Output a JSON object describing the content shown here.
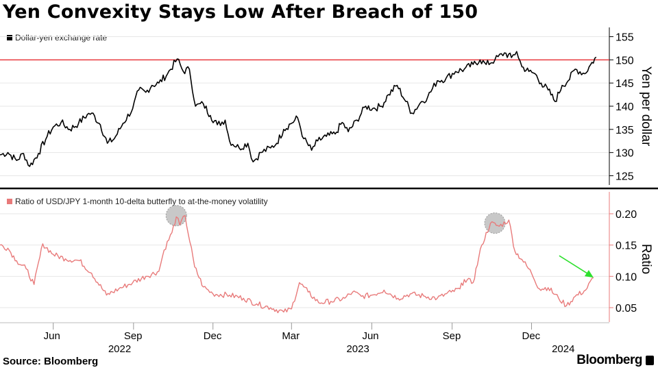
{
  "title": "Yen Convexity Stays Low After Breach of 150",
  "source": "Source: Bloomberg",
  "brand": "Bloomberg",
  "colors": {
    "upper_line": "#000000",
    "lower_line": "#e87a7a",
    "reference_line": "#e8383d",
    "arrow": "#2ee02e",
    "highlight": "#bdbdbd",
    "axis_lower": "#e87a7a"
  },
  "x_axis": {
    "month_ticks": [
      {
        "label": "Jun",
        "date": "2022-06-01"
      },
      {
        "label": "Sep",
        "date": "2022-09-01"
      },
      {
        "label": "Dec",
        "date": "2022-12-01"
      },
      {
        "label": "Mar",
        "date": "2023-03-01"
      },
      {
        "label": "Jun",
        "date": "2023-06-01"
      },
      {
        "label": "Sep",
        "date": "2023-09-01"
      },
      {
        "label": "Dec",
        "date": "2023-12-01"
      }
    ],
    "year_labels": [
      {
        "label": "2022",
        "date": "2022-09-01"
      },
      {
        "label": "2023",
        "date": "2023-06-01"
      },
      {
        "label": "2024",
        "date": "2024-01-05"
      }
    ]
  },
  "chart_data": [
    {
      "type": "line",
      "legend": "Dollar-yen exchange rate",
      "ylabel": "Yen per dollar",
      "ylim": [
        123,
        157
      ],
      "yticks": [
        125,
        130,
        135,
        140,
        145,
        150,
        155
      ],
      "reference_line": 150,
      "series": [
        {
          "name": "Dollar-yen exchange rate",
          "points": [
            [
              "2022-04-01",
              129.5
            ],
            [
              "2022-04-10",
              130.0
            ],
            [
              "2022-04-20",
              128.3
            ],
            [
              "2022-04-28",
              129.8
            ],
            [
              "2022-05-05",
              127.0
            ],
            [
              "2022-05-15",
              129.8
            ],
            [
              "2022-05-25",
              133.5
            ],
            [
              "2022-06-01",
              135.5
            ],
            [
              "2022-06-10",
              136.5
            ],
            [
              "2022-06-20",
              135.0
            ],
            [
              "2022-06-30",
              136.3
            ],
            [
              "2022-07-10",
              138.2
            ],
            [
              "2022-07-15",
              138.5
            ],
            [
              "2022-07-25",
              136.0
            ],
            [
              "2022-08-02",
              132.0
            ],
            [
              "2022-08-10",
              133.0
            ],
            [
              "2022-08-20",
              136.3
            ],
            [
              "2022-08-31",
              139.5
            ],
            [
              "2022-09-07",
              143.5
            ],
            [
              "2022-09-15",
              143.0
            ],
            [
              "2022-09-22",
              144.5
            ],
            [
              "2022-09-30",
              145.0
            ],
            [
              "2022-10-10",
              147.0
            ],
            [
              "2022-10-21",
              150.2
            ],
            [
              "2022-10-28",
              147.5
            ],
            [
              "2022-11-04",
              148.0
            ],
            [
              "2022-11-11",
              140.0
            ],
            [
              "2022-11-20",
              140.5
            ],
            [
              "2022-11-28",
              138.0
            ],
            [
              "2022-12-06",
              136.0
            ],
            [
              "2022-12-15",
              137.0
            ],
            [
              "2022-12-20",
              132.5
            ],
            [
              "2022-12-31",
              131.0
            ],
            [
              "2023-01-10",
              132.0
            ],
            [
              "2023-01-16",
              128.0
            ],
            [
              "2023-01-25",
              130.0
            ],
            [
              "2023-02-05",
              131.0
            ],
            [
              "2023-02-12",
              132.0
            ],
            [
              "2023-02-20",
              135.0
            ],
            [
              "2023-02-28",
              136.2
            ],
            [
              "2023-03-08",
              137.5
            ],
            [
              "2023-03-15",
              133.0
            ],
            [
              "2023-03-24",
              130.5
            ],
            [
              "2023-03-31",
              132.5
            ],
            [
              "2023-04-10",
              133.5
            ],
            [
              "2023-04-20",
              134.0
            ],
            [
              "2023-04-28",
              136.5
            ],
            [
              "2023-05-05",
              134.5
            ],
            [
              "2023-05-15",
              137.0
            ],
            [
              "2023-05-25",
              140.0
            ],
            [
              "2023-06-02",
              139.5
            ],
            [
              "2023-06-12",
              140.0
            ],
            [
              "2023-06-20",
              142.5
            ],
            [
              "2023-06-30",
              144.5
            ],
            [
              "2023-07-10",
              141.0
            ],
            [
              "2023-07-17",
              138.5
            ],
            [
              "2023-07-28",
              141.0
            ],
            [
              "2023-08-04",
              142.0
            ],
            [
              "2023-08-15",
              145.5
            ],
            [
              "2023-08-25",
              146.0
            ],
            [
              "2023-09-05",
              147.5
            ],
            [
              "2023-09-15",
              148.0
            ],
            [
              "2023-09-25",
              149.0
            ],
            [
              "2023-10-03",
              150.0
            ],
            [
              "2023-10-10",
              149.0
            ],
            [
              "2023-10-20",
              150.0
            ],
            [
              "2023-10-31",
              151.5
            ],
            [
              "2023-11-08",
              150.5
            ],
            [
              "2023-11-14",
              151.8
            ],
            [
              "2023-11-20",
              148.5
            ],
            [
              "2023-11-28",
              147.5
            ],
            [
              "2023-12-05",
              147.0
            ],
            [
              "2023-12-12",
              145.0
            ],
            [
              "2023-12-20",
              143.5
            ],
            [
              "2023-12-28",
              141.0
            ],
            [
              "2024-01-05",
              144.5
            ],
            [
              "2024-01-12",
              145.5
            ],
            [
              "2024-01-20",
              148.0
            ],
            [
              "2024-01-31",
              147.0
            ],
            [
              "2024-02-05",
              148.5
            ],
            [
              "2024-02-13",
              150.6
            ]
          ]
        }
      ]
    },
    {
      "type": "line",
      "legend": "Ratio of USD/JPY 1-month 10-delta butterfly to at-the-money volatility",
      "ylabel": "Ratio",
      "ylim": [
        0.027,
        0.235
      ],
      "yticks": [
        0.05,
        0.1,
        0.15,
        0.2
      ],
      "ytick_labels": [
        "0.05",
        "0.10",
        "0.15",
        "0.20"
      ],
      "highlights": [
        "2022-10-20",
        "2023-10-20"
      ],
      "arrow_target": "2024-02-10",
      "series": [
        {
          "name": "Ratio of USD/JPY 1-month 10-delta butterfly to at-the-money volatility",
          "points": [
            [
              "2022-04-01",
              0.15
            ],
            [
              "2022-04-10",
              0.145
            ],
            [
              "2022-04-20",
              0.125
            ],
            [
              "2022-05-01",
              0.112
            ],
            [
              "2022-05-10",
              0.087
            ],
            [
              "2022-05-20",
              0.152
            ],
            [
              "2022-06-01",
              0.135
            ],
            [
              "2022-06-15",
              0.128
            ],
            [
              "2022-07-01",
              0.125
            ],
            [
              "2022-07-15",
              0.105
            ],
            [
              "2022-08-01",
              0.07
            ],
            [
              "2022-08-15",
              0.08
            ],
            [
              "2022-08-31",
              0.09
            ],
            [
              "2022-09-15",
              0.1
            ],
            [
              "2022-09-30",
              0.108
            ],
            [
              "2022-10-06",
              0.142
            ],
            [
              "2022-10-15",
              0.17
            ],
            [
              "2022-10-20",
              0.195
            ],
            [
              "2022-10-24",
              0.182
            ],
            [
              "2022-10-30",
              0.197
            ],
            [
              "2022-11-10",
              0.115
            ],
            [
              "2022-11-20",
              0.083
            ],
            [
              "2022-12-01",
              0.072
            ],
            [
              "2022-12-20",
              0.07
            ],
            [
              "2023-01-05",
              0.065
            ],
            [
              "2023-01-20",
              0.056
            ],
            [
              "2023-02-05",
              0.05
            ],
            [
              "2023-02-20",
              0.043
            ],
            [
              "2023-03-01",
              0.048
            ],
            [
              "2023-03-10",
              0.09
            ],
            [
              "2023-03-20",
              0.075
            ],
            [
              "2023-04-01",
              0.058
            ],
            [
              "2023-04-15",
              0.06
            ],
            [
              "2023-05-01",
              0.065
            ],
            [
              "2023-05-10",
              0.075
            ],
            [
              "2023-05-20",
              0.068
            ],
            [
              "2023-06-01",
              0.07
            ],
            [
              "2023-06-15",
              0.078
            ],
            [
              "2023-07-01",
              0.065
            ],
            [
              "2023-07-15",
              0.072
            ],
            [
              "2023-08-01",
              0.068
            ],
            [
              "2023-08-15",
              0.065
            ],
            [
              "2023-08-31",
              0.075
            ],
            [
              "2023-09-10",
              0.08
            ],
            [
              "2023-09-15",
              0.095
            ],
            [
              "2023-09-25",
              0.09
            ],
            [
              "2023-10-05",
              0.15
            ],
            [
              "2023-10-15",
              0.185
            ],
            [
              "2023-10-25",
              0.18
            ],
            [
              "2023-11-05",
              0.19
            ],
            [
              "2023-11-12",
              0.14
            ],
            [
              "2023-11-20",
              0.127
            ],
            [
              "2023-12-01",
              0.105
            ],
            [
              "2023-12-10",
              0.08
            ],
            [
              "2023-12-20",
              0.082
            ],
            [
              "2024-01-01",
              0.065
            ],
            [
              "2024-01-10",
              0.053
            ],
            [
              "2024-01-20",
              0.068
            ],
            [
              "2024-02-01",
              0.078
            ],
            [
              "2024-02-10",
              0.098
            ]
          ]
        }
      ]
    }
  ]
}
